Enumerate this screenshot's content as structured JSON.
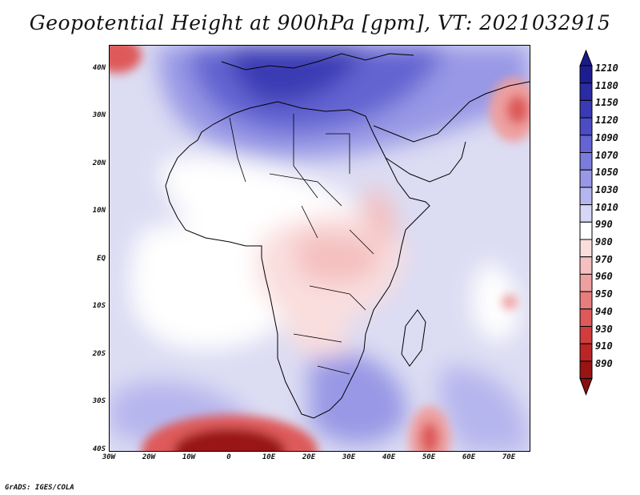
{
  "title": "Geopotential Height at 900hPa [gpm], VT: 2021032915",
  "credit": "GrADS: IGES/COLA",
  "map": {
    "projection": "latlon",
    "lon_range": [
      -30,
      75
    ],
    "lat_range": [
      -40,
      45
    ],
    "y_ticks": [
      {
        "lat": 40,
        "label": "40N"
      },
      {
        "lat": 30,
        "label": "30N"
      },
      {
        "lat": 20,
        "label": "20N"
      },
      {
        "lat": 10,
        "label": "10N"
      },
      {
        "lat": 0,
        "label": "EQ"
      },
      {
        "lat": -10,
        "label": "10S"
      },
      {
        "lat": -20,
        "label": "20S"
      },
      {
        "lat": -30,
        "label": "30S"
      },
      {
        "lat": -40,
        "label": "40S"
      }
    ],
    "x_ticks": [
      {
        "lon": -30,
        "label": "30W"
      },
      {
        "lon": -20,
        "label": "20W"
      },
      {
        "lon": -10,
        "label": "10W"
      },
      {
        "lon": 0,
        "label": "0"
      },
      {
        "lon": 10,
        "label": "10E"
      },
      {
        "lon": 20,
        "label": "20E"
      },
      {
        "lon": 30,
        "label": "30E"
      },
      {
        "lon": 40,
        "label": "40E"
      },
      {
        "lon": 50,
        "label": "50E"
      },
      {
        "lon": 60,
        "label": "60E"
      },
      {
        "lon": 70,
        "label": "70E"
      }
    ],
    "features": [
      {
        "name": "mediterranean-high",
        "lon": 12,
        "lat": 35,
        "value": 1170
      },
      {
        "name": "east-africa-low",
        "lon": 25,
        "lat": 5,
        "value": 975
      },
      {
        "name": "south-atlantic-low",
        "lon": 0,
        "lat": -40,
        "value": 900
      },
      {
        "name": "south-indian-low",
        "lon": 50,
        "lat": -37,
        "value": 950
      },
      {
        "name": "indian-ocean-low",
        "lon": 70,
        "lat": -11,
        "value": 970
      },
      {
        "name": "pakistan-low",
        "lon": 71,
        "lat": 31,
        "value": 960
      }
    ]
  },
  "colorbar": {
    "levels": [
      {
        "label": "1210",
        "color": "#1d1d92"
      },
      {
        "label": "1180",
        "color": "#2b2ba3"
      },
      {
        "label": "1150",
        "color": "#3a3ab4"
      },
      {
        "label": "1120",
        "color": "#4c4cc4"
      },
      {
        "label": "1090",
        "color": "#6464d2"
      },
      {
        "label": "1070",
        "color": "#7c7cdd"
      },
      {
        "label": "1050",
        "color": "#9898e6"
      },
      {
        "label": "1030",
        "color": "#b6b6ee"
      },
      {
        "label": "1010",
        "color": "#d6d6f6"
      },
      {
        "label": "990",
        "color": "#ffffff"
      },
      {
        "label": "980",
        "color": "#fadede"
      },
      {
        "label": "970",
        "color": "#f4c0c0"
      },
      {
        "label": "960",
        "color": "#ee9f9f"
      },
      {
        "label": "950",
        "color": "#e87d7d"
      },
      {
        "label": "940",
        "color": "#de5a5a"
      },
      {
        "label": "930",
        "color": "#d23c3c"
      },
      {
        "label": "910",
        "color": "#bb2525"
      },
      {
        "label": "890",
        "color": "#9a1414"
      }
    ],
    "top_color": "#1a1a88",
    "bottom_color": "#8b0f0f"
  }
}
